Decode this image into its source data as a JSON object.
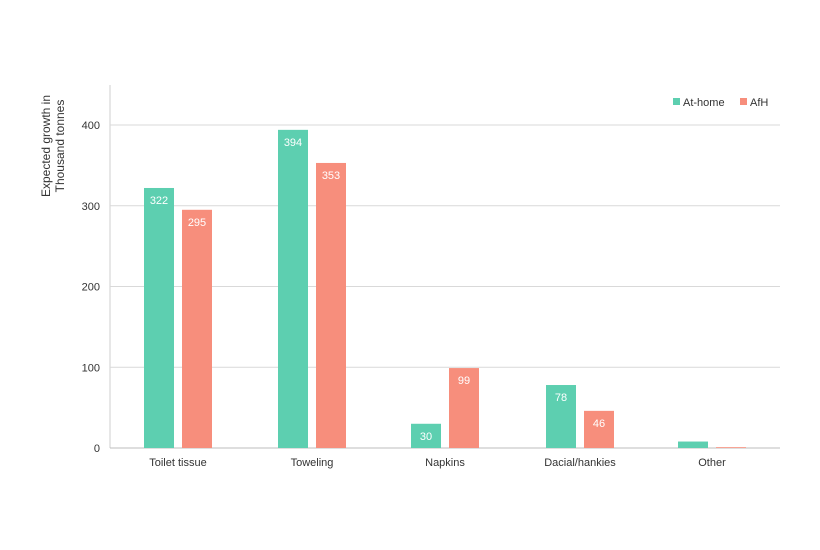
{
  "chart_data": {
    "type": "bar",
    "categories": [
      "Toilet tissue",
      "Toweling",
      "Napkins",
      "Dacial/hankies",
      "Other"
    ],
    "series": [
      {
        "name": "At-home",
        "values": [
          322,
          394,
          30,
          78,
          8
        ],
        "labels": [
          "322",
          "394",
          "30",
          "78",
          ""
        ],
        "color": "#5dcfb0"
      },
      {
        "name": "AfH",
        "values": [
          295,
          353,
          99,
          46,
          1
        ],
        "labels": [
          "295",
          "353",
          "99",
          "46",
          ""
        ],
        "color": "#f78e7c"
      }
    ],
    "ylabel_lines": [
      "Expected growth in",
      "Thousand tonnes"
    ],
    "yticks": [
      0,
      100,
      200,
      300,
      400
    ],
    "ylim": [
      0,
      450
    ],
    "grid": true,
    "legend_position": "top-right"
  }
}
